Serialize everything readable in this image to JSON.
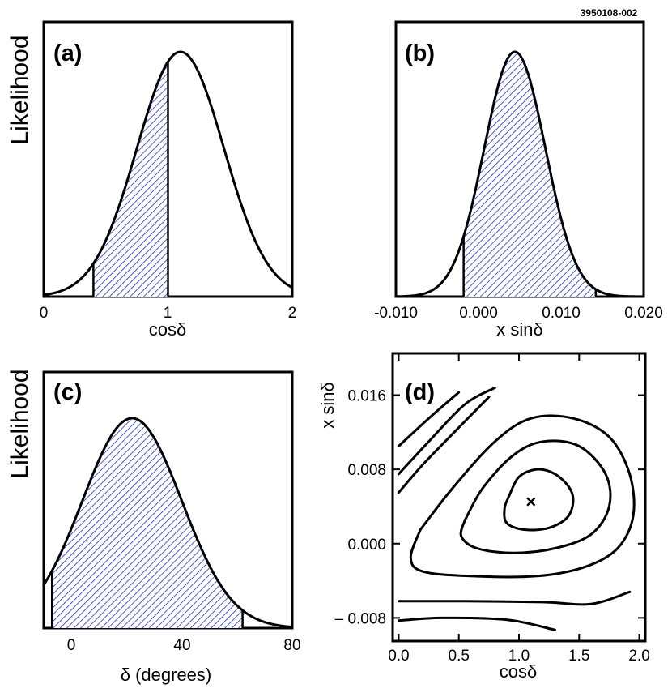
{
  "figure_id": "3950108-002",
  "colors": {
    "hatch": "#2233aa",
    "line": "#000000"
  },
  "chart_data": [
    {
      "panel": "(a)",
      "type": "line",
      "title": "",
      "xlabel": "cosδ",
      "ylabel": "Likelihood",
      "xlim": [
        0,
        2
      ],
      "xticks": [
        "0",
        "1",
        "2"
      ],
      "curve": {
        "shape": "gaussian",
        "peak": 1.1,
        "sigma": 0.35
      },
      "shaded_interval": [
        0.4,
        1.0
      ]
    },
    {
      "panel": "(b)",
      "type": "line",
      "title": "",
      "xlabel": "x sinδ",
      "ylabel": "",
      "xlim": [
        -0.01,
        0.02
      ],
      "xticks": [
        "-0.010",
        "0.000",
        "0.010",
        "0.020"
      ],
      "curve": {
        "shape": "gaussian",
        "peak": 0.0044,
        "sigma": 0.0037
      },
      "shaded_interval": [
        -0.0018,
        0.0142
      ]
    },
    {
      "panel": "(c)",
      "type": "line",
      "title": "",
      "xlabel": "δ (degrees)",
      "ylabel": "Likelihood",
      "xlim": [
        -10,
        80
      ],
      "xticks": [
        "0",
        "40",
        "80"
      ],
      "curve": {
        "shape": "gaussian",
        "peak": 22,
        "sigma": 18
      },
      "shaded_interval": [
        -7,
        62
      ]
    },
    {
      "panel": "(d)",
      "type": "contour",
      "title": "",
      "xlabel": "cosδ",
      "ylabel": "x sinδ",
      "xlim": [
        -0.05,
        2.05
      ],
      "ylim": [
        -0.0105,
        0.0205
      ],
      "xticks": [
        "0.0",
        "0.5",
        "1.0",
        "1.5",
        "2.0"
      ],
      "xtick_values": [
        0,
        0.5,
        1.0,
        1.5,
        2.0
      ],
      "yticks": [
        "0.016",
        "0.008",
        "0.000",
        "– 0.008"
      ],
      "ytick_values": [
        0.016,
        0.008,
        0.0,
        -0.008
      ],
      "best_fit": {
        "x": 1.1,
        "y": 0.0045,
        "marker": "×"
      },
      "contours": [
        [
          [
            0.92,
            0.0052
          ],
          [
            1.0,
            0.0072
          ],
          [
            1.15,
            0.008
          ],
          [
            1.3,
            0.0075
          ],
          [
            1.42,
            0.006
          ],
          [
            1.45,
            0.0045
          ],
          [
            1.4,
            0.0028
          ],
          [
            1.25,
            0.0017
          ],
          [
            1.05,
            0.0015
          ],
          [
            0.9,
            0.0022
          ],
          [
            0.88,
            0.0038
          ],
          [
            0.92,
            0.0052
          ]
        ],
        [
          [
            0.55,
            0.0025
          ],
          [
            0.7,
            0.006
          ],
          [
            0.95,
            0.0095
          ],
          [
            1.2,
            0.011
          ],
          [
            1.5,
            0.0105
          ],
          [
            1.72,
            0.0075
          ],
          [
            1.75,
            0.004
          ],
          [
            1.6,
            0.001
          ],
          [
            1.3,
            -0.0005
          ],
          [
            0.95,
            -0.001
          ],
          [
            0.65,
            -0.0005
          ],
          [
            0.52,
            0.0008
          ],
          [
            0.55,
            0.0025
          ]
        ],
        [
          [
            0.18,
            0.0015
          ],
          [
            0.45,
            0.006
          ],
          [
            0.8,
            0.011
          ],
          [
            1.1,
            0.0135
          ],
          [
            1.45,
            0.0135
          ],
          [
            1.75,
            0.0115
          ],
          [
            1.92,
            0.0075
          ],
          [
            1.95,
            0.003
          ],
          [
            1.82,
            -0.0005
          ],
          [
            1.55,
            -0.0025
          ],
          [
            1.15,
            -0.0035
          ],
          [
            0.6,
            -0.0035
          ],
          [
            0.2,
            -0.003
          ],
          [
            0.1,
            -0.0015
          ],
          [
            0.18,
            0.0015
          ]
        ],
        [
          [
            0.0,
            0.0055
          ],
          [
            0.2,
            0.0085
          ],
          [
            0.5,
            0.0125
          ],
          [
            0.75,
            0.0158
          ]
        ],
        [
          [
            0.0,
            0.0075
          ],
          [
            0.25,
            0.011
          ],
          [
            0.55,
            0.015
          ],
          [
            0.8,
            0.0168
          ]
        ],
        [
          [
            0.0,
            0.0105
          ],
          [
            0.25,
            0.0135
          ],
          [
            0.5,
            0.0163
          ]
        ],
        [
          [
            0.0,
            -0.0062
          ],
          [
            0.55,
            -0.0062
          ],
          [
            1.2,
            -0.0063
          ],
          [
            1.6,
            -0.0065
          ],
          [
            1.92,
            -0.0052
          ]
        ],
        [
          [
            0.0,
            -0.0083
          ],
          [
            0.35,
            -0.008
          ],
          [
            0.9,
            -0.0082
          ],
          [
            1.3,
            -0.0093
          ]
        ]
      ]
    }
  ]
}
